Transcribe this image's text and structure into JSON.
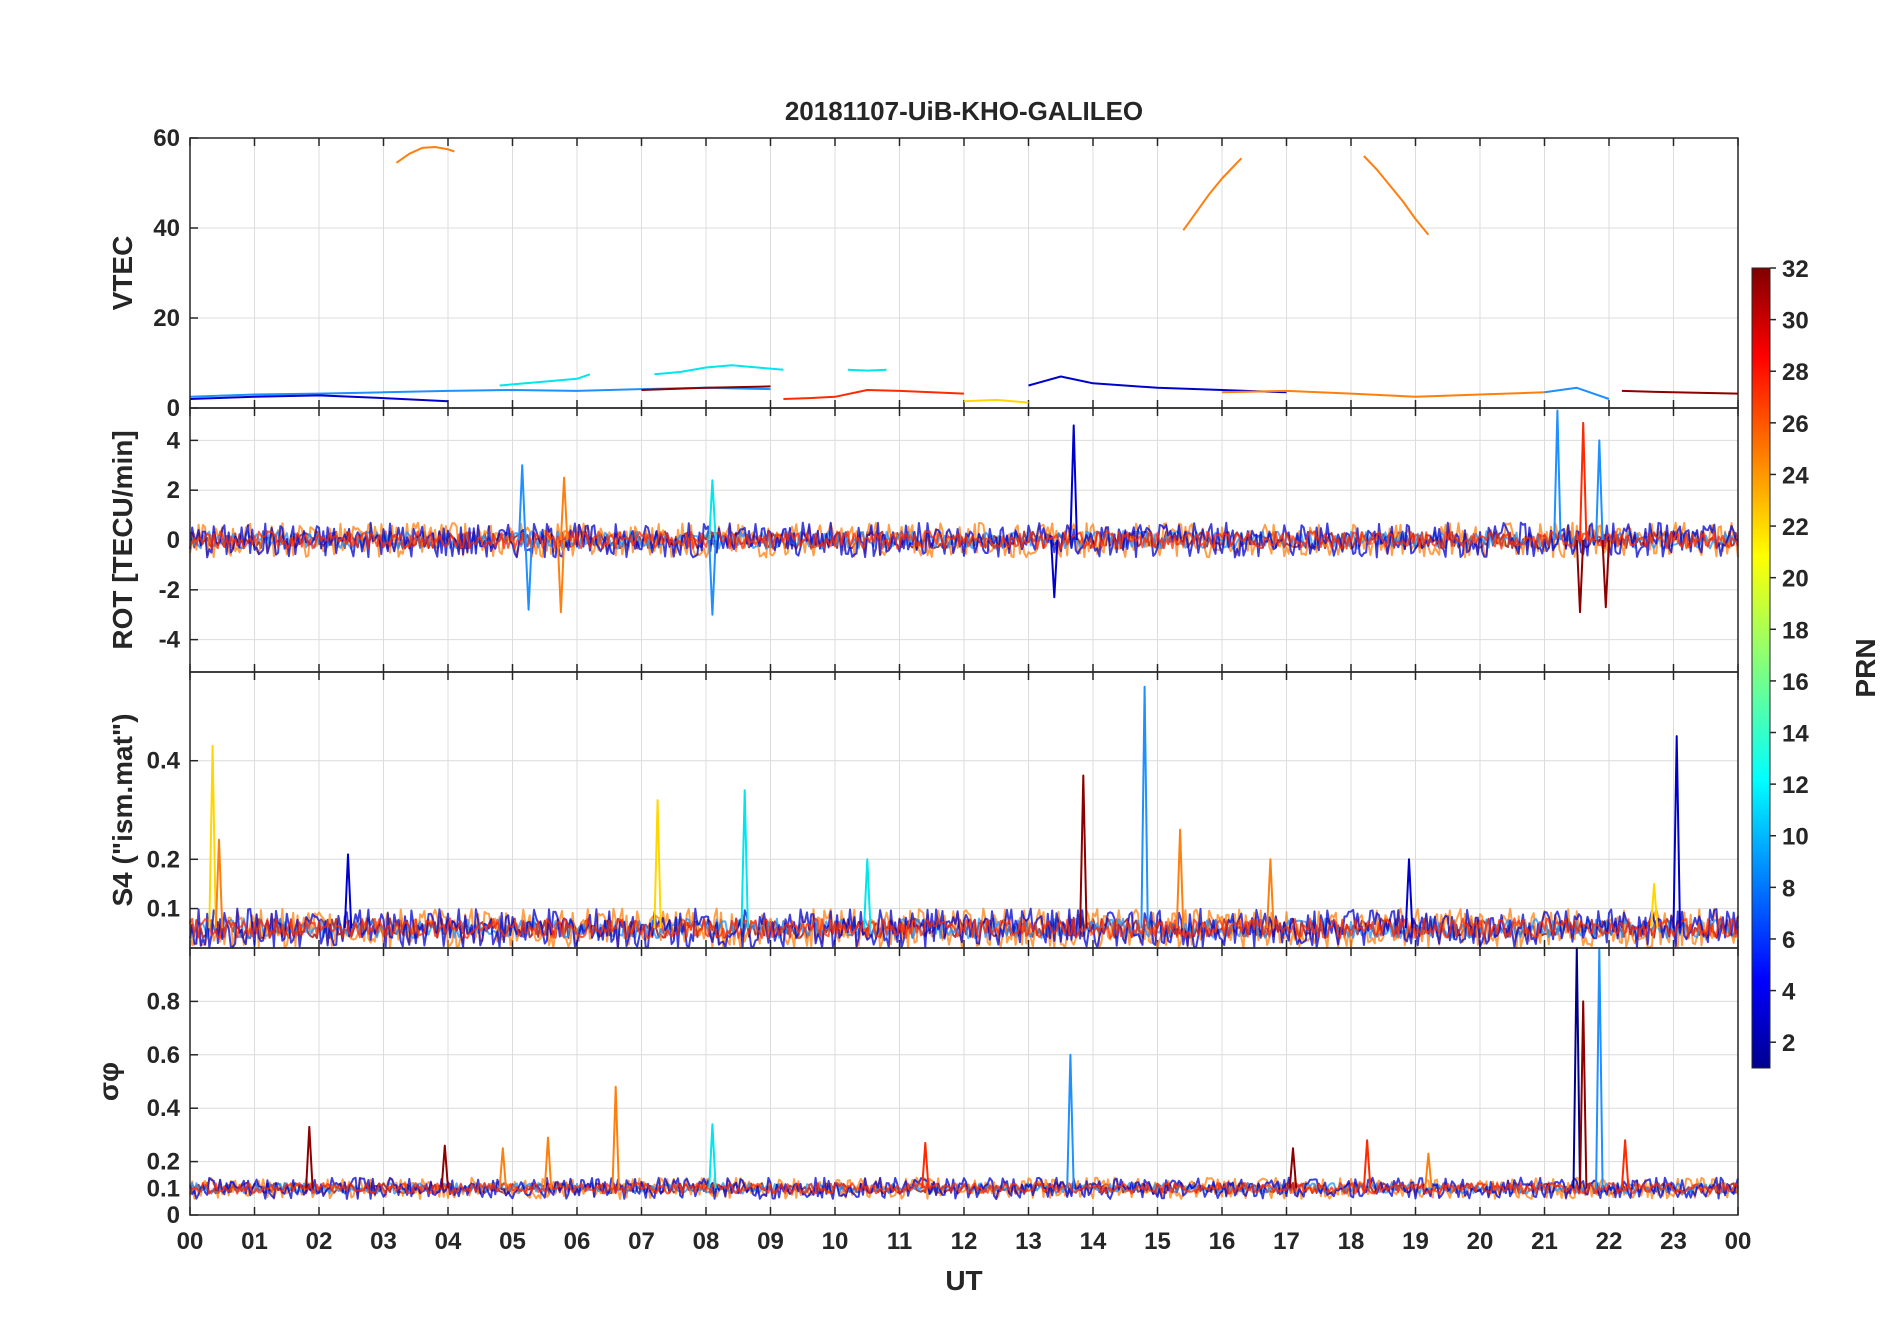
{
  "chart_data": {
    "type": "line",
    "title": "20181107-UiB-KHO-GALILEO",
    "xlabel": "UT",
    "x_ticks": [
      "00",
      "01",
      "02",
      "03",
      "04",
      "05",
      "06",
      "07",
      "08",
      "09",
      "10",
      "11",
      "12",
      "13",
      "14",
      "15",
      "16",
      "17",
      "18",
      "19",
      "20",
      "21",
      "22",
      "23",
      "00"
    ],
    "xlim": [
      0,
      24
    ],
    "grid": true,
    "colorbar": {
      "label": "PRN",
      "colormap": "jet",
      "range": [
        1,
        32
      ],
      "ticks": [
        "2",
        "4",
        "6",
        "8",
        "10",
        "12",
        "14",
        "16",
        "18",
        "20",
        "22",
        "24",
        "26",
        "28",
        "30",
        "32"
      ]
    },
    "panels": [
      {
        "id": "vtec",
        "ylabel": "VTEC",
        "ylim": [
          0,
          60
        ],
        "y_ticks": [
          {
            "value": 0,
            "label": "0"
          },
          {
            "value": 20,
            "label": "20"
          },
          {
            "value": 40,
            "label": "40"
          },
          {
            "value": 60,
            "label": "60"
          }
        ],
        "series": [
          {
            "color": "#ff7f0e",
            "x": [
              3.2,
              3.4,
              3.6,
              3.8,
              4.0,
              4.1
            ],
            "y": [
              54.5,
              56.5,
              57.8,
              58.0,
              57.5,
              57.0
            ]
          },
          {
            "color": "#ff7f0e",
            "x": [
              15.4,
              15.6,
              15.8,
              16.0,
              16.2,
              16.3
            ],
            "y": [
              39.5,
              43.5,
              47.5,
              51.0,
              54.0,
              55.5
            ]
          },
          {
            "color": "#ff7f0e",
            "x": [
              18.2,
              18.4,
              18.6,
              18.8,
              19.0,
              19.2
            ],
            "y": [
              56.0,
              53.0,
              49.5,
              46.0,
              42.0,
              38.5
            ]
          },
          {
            "color": "#1e90ff",
            "x": [
              0,
              1,
              2,
              3,
              4,
              5,
              6,
              7,
              8,
              9
            ],
            "y": [
              2.5,
              3.0,
              3.2,
              3.5,
              3.8,
              4.0,
              3.8,
              4.2,
              4.5,
              4.2
            ]
          },
          {
            "color": "#0000cd",
            "x": [
              0,
              1,
              2,
              3,
              4
            ],
            "y": [
              2.0,
              2.5,
              2.8,
              2.2,
              1.5
            ]
          },
          {
            "color": "#00e5ee",
            "x": [
              4.8,
              5.2,
              5.6,
              6.0,
              6.2
            ],
            "y": [
              5.0,
              5.5,
              6.0,
              6.5,
              7.5
            ]
          },
          {
            "color": "#00e5ee",
            "x": [
              7.2,
              7.6,
              8.0,
              8.4,
              8.8,
              9.2
            ],
            "y": [
              7.5,
              8.0,
              9.0,
              9.5,
              9.0,
              8.5
            ]
          },
          {
            "color": "#00e5ee",
            "x": [
              10.2,
              10.5,
              10.8
            ],
            "y": [
              8.5,
              8.3,
              8.5
            ]
          },
          {
            "color": "#8b0000",
            "x": [
              7.0,
              8.0,
              9.0
            ],
            "y": [
              4.0,
              4.5,
              4.8
            ]
          },
          {
            "color": "#ff2a00",
            "x": [
              9.2,
              9.6,
              10.0,
              10.5,
              11.0,
              11.5,
              12.0
            ],
            "y": [
              2.0,
              2.2,
              2.5,
              4.0,
              3.8,
              3.5,
              3.2
            ]
          },
          {
            "color": "#ffd700",
            "x": [
              12.0,
              12.5,
              13.0
            ],
            "y": [
              1.5,
              1.8,
              1.2
            ]
          },
          {
            "color": "#0000cd",
            "x": [
              13.0,
              13.5,
              14.0,
              15.0,
              16.0,
              17.0
            ],
            "y": [
              5.0,
              7.0,
              5.5,
              4.5,
              4.0,
              3.5
            ]
          },
          {
            "color": "#ff7f0e",
            "x": [
              16.0,
              17.0,
              18.0,
              19.0,
              20.0,
              21.0
            ],
            "y": [
              3.5,
              3.8,
              3.2,
              2.5,
              3.0,
              3.5
            ]
          },
          {
            "color": "#1e90ff",
            "x": [
              21.0,
              21.5,
              22.0
            ],
            "y": [
              3.5,
              4.5,
              2.0
            ]
          },
          {
            "color": "#8b0000",
            "x": [
              22.2,
              23.0,
              24.0
            ],
            "y": [
              3.8,
              3.5,
              3.2
            ]
          }
        ]
      },
      {
        "id": "rot",
        "ylabel": "ROT [TECU/min]",
        "ylim": [
          -5.3,
          5.3
        ],
        "y_ticks": [
          {
            "value": -4,
            "label": "-4"
          },
          {
            "value": -2,
            "label": "-2"
          },
          {
            "value": 0,
            "label": "0"
          },
          {
            "value": 2,
            "label": "2"
          },
          {
            "value": 4,
            "label": "4"
          }
        ],
        "peaks": [
          {
            "x": 5.15,
            "y": 3.0,
            "color": "#1e90ff"
          },
          {
            "x": 5.25,
            "y": -2.8,
            "color": "#1e90ff"
          },
          {
            "x": 5.8,
            "y": 2.5,
            "color": "#ff7f0e"
          },
          {
            "x": 5.75,
            "y": -2.9,
            "color": "#ff7f0e"
          },
          {
            "x": 8.1,
            "y": 2.4,
            "color": "#00e5ee"
          },
          {
            "x": 8.1,
            "y": -3.0,
            "color": "#1e90ff"
          },
          {
            "x": 13.7,
            "y": 4.6,
            "color": "#0000cd"
          },
          {
            "x": 13.4,
            "y": -2.3,
            "color": "#0000cd"
          },
          {
            "x": 21.2,
            "y": 5.2,
            "color": "#1e90ff"
          },
          {
            "x": 21.6,
            "y": 4.7,
            "color": "#ff2a00"
          },
          {
            "x": 21.55,
            "y": -2.9,
            "color": "#8b0000"
          },
          {
            "x": 21.85,
            "y": 4.0,
            "color": "#1e90ff"
          },
          {
            "x": 21.95,
            "y": -2.7,
            "color": "#8b0000"
          }
        ]
      },
      {
        "id": "s4",
        "ylabel": "S4 (\"ism.mat\")",
        "ylim": [
          0.02,
          0.58
        ],
        "y_ticks": [
          {
            "value": 0.1,
            "label": "0.1"
          },
          {
            "value": 0.2,
            "label": "0.2"
          },
          {
            "value": 0.4,
            "label": "0.4"
          }
        ],
        "peaks": [
          {
            "x": 0.35,
            "y": 0.43,
            "color": "#ffd700"
          },
          {
            "x": 0.45,
            "y": 0.24,
            "color": "#ff7f0e"
          },
          {
            "x": 2.45,
            "y": 0.21,
            "color": "#0000cd"
          },
          {
            "x": 7.25,
            "y": 0.32,
            "color": "#ffd700"
          },
          {
            "x": 8.6,
            "y": 0.34,
            "color": "#00e5ee"
          },
          {
            "x": 10.5,
            "y": 0.2,
            "color": "#00e5ee"
          },
          {
            "x": 13.85,
            "y": 0.37,
            "color": "#8b0000"
          },
          {
            "x": 14.8,
            "y": 0.55,
            "color": "#1e90ff"
          },
          {
            "x": 15.35,
            "y": 0.26,
            "color": "#ff7f0e"
          },
          {
            "x": 16.75,
            "y": 0.2,
            "color": "#ff7f0e"
          },
          {
            "x": 18.9,
            "y": 0.2,
            "color": "#0000cd"
          },
          {
            "x": 22.7,
            "y": 0.15,
            "color": "#ffd700"
          },
          {
            "x": 23.05,
            "y": 0.45,
            "color": "#0000cd"
          }
        ]
      },
      {
        "id": "sigma",
        "ylabel": "σφ",
        "ylim": [
          0,
          1.0
        ],
        "y_ticks": [
          {
            "value": 0,
            "label": "0"
          },
          {
            "value": 0.1,
            "label": "0.1"
          },
          {
            "value": 0.2,
            "label": "0.2"
          },
          {
            "value": 0.4,
            "label": "0.4"
          },
          {
            "value": 0.6,
            "label": "0.6"
          },
          {
            "value": 0.8,
            "label": "0.8"
          }
        ],
        "peaks": [
          {
            "x": 1.85,
            "y": 0.33,
            "color": "#8b0000"
          },
          {
            "x": 3.95,
            "y": 0.26,
            "color": "#8b0000"
          },
          {
            "x": 4.85,
            "y": 0.25,
            "color": "#ff7f0e"
          },
          {
            "x": 5.55,
            "y": 0.29,
            "color": "#ff7f0e"
          },
          {
            "x": 6.6,
            "y": 0.48,
            "color": "#ff7f0e"
          },
          {
            "x": 8.1,
            "y": 0.34,
            "color": "#00e5ee"
          },
          {
            "x": 11.4,
            "y": 0.27,
            "color": "#ff2a00"
          },
          {
            "x": 13.65,
            "y": 0.6,
            "color": "#1e90ff"
          },
          {
            "x": 17.1,
            "y": 0.25,
            "color": "#8b0000"
          },
          {
            "x": 18.25,
            "y": 0.28,
            "color": "#ff2a00"
          },
          {
            "x": 19.2,
            "y": 0.23,
            "color": "#ff7f0e"
          },
          {
            "x": 21.5,
            "y": 1.0,
            "color": "#00008b"
          },
          {
            "x": 21.6,
            "y": 0.8,
            "color": "#8b0000"
          },
          {
            "x": 21.85,
            "y": 1.0,
            "color": "#1e90ff"
          },
          {
            "x": 22.25,
            "y": 0.28,
            "color": "#ff2a00"
          }
        ]
      }
    ]
  }
}
